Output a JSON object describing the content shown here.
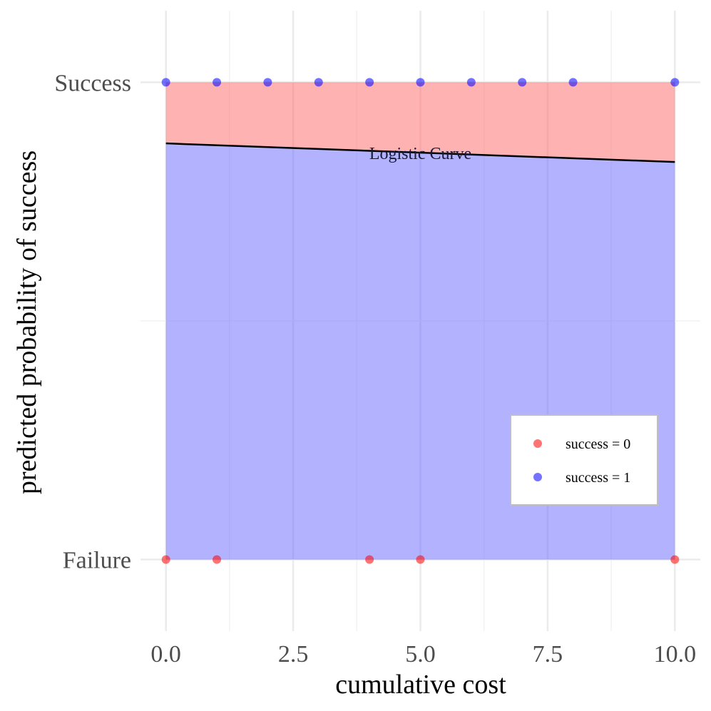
{
  "chart_data": {
    "type": "scatter",
    "title": "",
    "xlabel": "cumulative cost",
    "ylabel": "predicted probability of success",
    "xlim": [
      -0.5,
      10.5
    ],
    "ylim": [
      -0.15,
      1.15
    ],
    "x_ticks": [
      0,
      2.5,
      5,
      7.5,
      10
    ],
    "x_tick_labels": [
      "0.0",
      "2.5",
      "5.0",
      "7.5",
      "10.0"
    ],
    "y_ticks": [
      0,
      1
    ],
    "y_tick_labels": [
      "Failure",
      "Success"
    ],
    "grid": true,
    "legend_position": "bottom-right",
    "curve": {
      "label": "Logistic Curve",
      "color": "#000000",
      "points": [
        [
          0,
          0.872
        ],
        [
          10,
          0.833
        ]
      ]
    },
    "fill_colors": {
      "above": "#ff6b6b",
      "below": "#6666ff"
    },
    "series": [
      {
        "name": "success = 0",
        "color": "#ff0000",
        "x": [
          0,
          1,
          4,
          5,
          10
        ],
        "y": [
          0,
          0,
          0,
          0,
          0
        ]
      },
      {
        "name": "success = 1",
        "color": "#0000ff",
        "x": [
          0,
          1,
          2,
          3,
          4,
          5,
          6,
          7,
          8,
          10
        ],
        "y": [
          1,
          1,
          1,
          1,
          1,
          1,
          1,
          1,
          1,
          1
        ]
      }
    ]
  }
}
